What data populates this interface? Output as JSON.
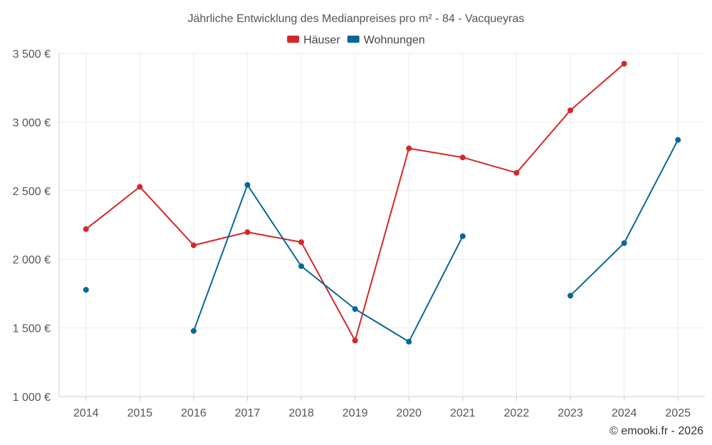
{
  "chart_data": {
    "type": "line",
    "title": "Jährliche Entwicklung des Medianpreises pro m² - 84 - Vacqueyras",
    "categories": [
      "2014",
      "2015",
      "2016",
      "2017",
      "2018",
      "2019",
      "2020",
      "2021",
      "2022",
      "2023",
      "2024",
      "2025"
    ],
    "y_ticks": [
      "1 000 €",
      "1 500 €",
      "2 000 €",
      "2 500 €",
      "3 000 €",
      "3 500 €"
    ],
    "ylim": [
      1000,
      3500
    ],
    "grid": true,
    "legend_position": "top-center",
    "series": [
      {
        "name": "Häuser",
        "color": "#d62728",
        "values": [
          2220,
          2528,
          2102,
          2198,
          2125,
          1408,
          2808,
          2742,
          2630,
          3085,
          3425,
          null
        ]
      },
      {
        "name": "Wohnungen",
        "color": "#0a6699",
        "values": [
          1778,
          null,
          1478,
          2542,
          1950,
          1638,
          1400,
          2168,
          null,
          1735,
          2118,
          2870
        ]
      }
    ],
    "credit": "© emooki.fr - 2026"
  }
}
